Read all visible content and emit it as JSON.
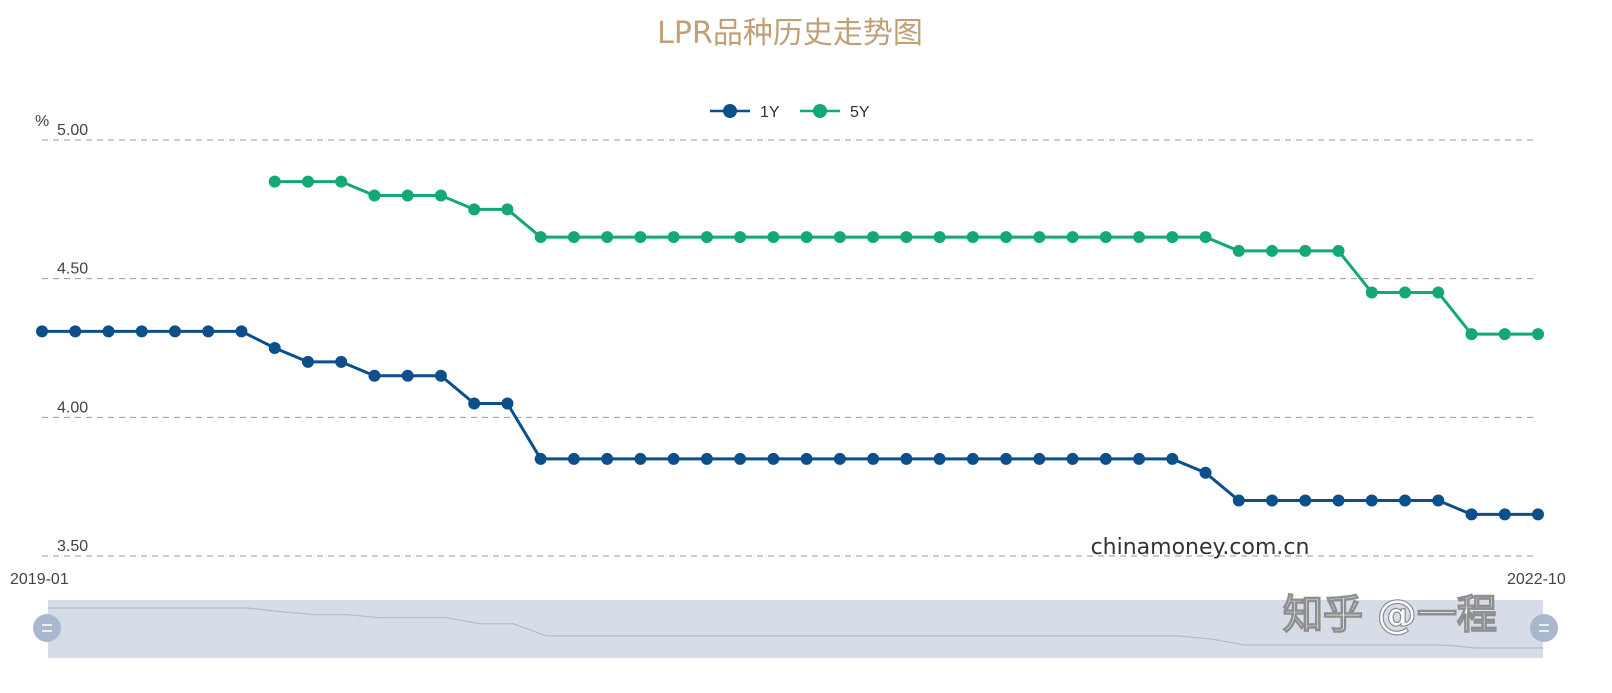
{
  "chart_data": {
    "type": "line",
    "title": "LPR品种历史走势图",
    "ylabel": "%",
    "ylim": [
      3.5,
      5.0
    ],
    "yticks": [
      "5.00",
      "4.50",
      "4.00",
      "3.50"
    ],
    "xlim": [
      "2019-01",
      "2022-10"
    ],
    "x_start_label": "2019-01",
    "x_end_label": "2022-10",
    "grid": true,
    "legend_position": "top-center",
    "series": [
      {
        "name": "1Y",
        "color": "#0c4f8a",
        "values": [
          4.31,
          4.31,
          4.31,
          4.31,
          4.31,
          4.31,
          4.31,
          4.25,
          4.2,
          4.2,
          4.15,
          4.15,
          4.15,
          4.05,
          4.05,
          3.85,
          3.85,
          3.85,
          3.85,
          3.85,
          3.85,
          3.85,
          3.85,
          3.85,
          3.85,
          3.85,
          3.85,
          3.85,
          3.85,
          3.85,
          3.85,
          3.85,
          3.85,
          3.85,
          3.85,
          3.8,
          3.7,
          3.7,
          3.7,
          3.7,
          3.7,
          3.7,
          3.7,
          3.65,
          3.65,
          3.65
        ]
      },
      {
        "name": "5Y",
        "color": "#12a878",
        "values": [
          null,
          null,
          null,
          null,
          null,
          null,
          null,
          4.85,
          4.85,
          4.85,
          4.8,
          4.8,
          4.8,
          4.75,
          4.75,
          4.65,
          4.65,
          4.65,
          4.65,
          4.65,
          4.65,
          4.65,
          4.65,
          4.65,
          4.65,
          4.65,
          4.65,
          4.65,
          4.65,
          4.65,
          4.65,
          4.65,
          4.65,
          4.65,
          4.65,
          4.65,
          4.6,
          4.6,
          4.6,
          4.6,
          4.45,
          4.45,
          4.45,
          4.3,
          4.3,
          4.3
        ]
      }
    ]
  },
  "watermark": "chinamoney.com.cn",
  "overlay_watermark": "知乎 @一程",
  "colors": {
    "title": "#bfa077",
    "grid": "#999999",
    "slider_bg": "#d6dde8",
    "slider_handle": "#a9b8cf"
  }
}
